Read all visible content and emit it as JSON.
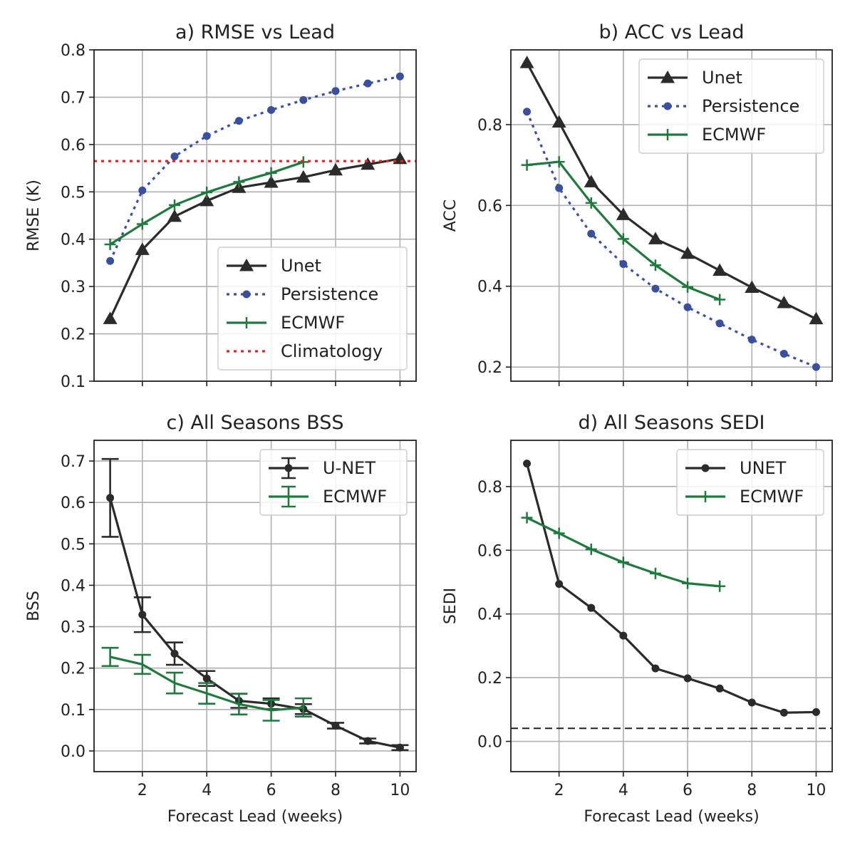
{
  "chart_data": [
    {
      "id": "a",
      "type": "line",
      "title": "a) RMSE vs Lead",
      "xlabel": "",
      "ylabel": "RMSE (K)",
      "xlim": [
        0.5,
        10.5
      ],
      "ylim": [
        0.1,
        0.8
      ],
      "xticks": [
        2,
        4,
        6,
        8,
        10
      ],
      "xtick_labels_visible": false,
      "yticks": [
        0.1,
        0.2,
        0.3,
        0.4,
        0.5,
        0.6,
        0.7,
        0.8
      ],
      "ytick_labels": [
        "0.1",
        "0.2",
        "0.3",
        "0.4",
        "0.5",
        "0.6",
        "0.7",
        "0.8"
      ],
      "grid": true,
      "legend_position": "lower right",
      "series": [
        {
          "name": "Unet",
          "color": "#2b2b2b",
          "style": "solid",
          "marker": "triangle",
          "x": [
            1,
            2,
            3,
            4,
            5,
            6,
            7,
            8,
            9,
            10
          ],
          "y": [
            0.232,
            0.378,
            0.448,
            0.481,
            0.509,
            0.52,
            0.531,
            0.546,
            0.558,
            0.57
          ]
        },
        {
          "name": "Persistence",
          "color": "#3b4fa0",
          "style": "dotted",
          "marker": "dot",
          "x": [
            1,
            2,
            3,
            4,
            5,
            6,
            7,
            8,
            9,
            10
          ],
          "y": [
            0.354,
            0.503,
            0.575,
            0.618,
            0.65,
            0.673,
            0.694,
            0.713,
            0.729,
            0.744
          ]
        },
        {
          "name": "ECMWF",
          "color": "#1f7a3d",
          "style": "solid",
          "marker": "plus",
          "x": [
            1,
            2,
            3,
            4,
            5,
            6,
            7
          ],
          "y": [
            0.389,
            0.432,
            0.472,
            0.499,
            0.521,
            0.54,
            0.563
          ]
        },
        {
          "name": "Climatology",
          "color": "#e8202a",
          "style": "dotted",
          "marker": "none",
          "x": [
            0.5,
            10.5
          ],
          "y": [
            0.565,
            0.565
          ]
        }
      ]
    },
    {
      "id": "b",
      "type": "line",
      "title": "b) ACC vs Lead",
      "xlabel": "",
      "ylabel": "ACC",
      "xlim": [
        0.5,
        10.5
      ],
      "ylim": [
        0.165,
        0.985
      ],
      "xticks": [
        2,
        4,
        6,
        8,
        10
      ],
      "xtick_labels_visible": false,
      "yticks": [
        0.2,
        0.4,
        0.6,
        0.8
      ],
      "ytick_labels": [
        "0.2",
        "0.4",
        "0.6",
        "0.8"
      ],
      "grid": true,
      "legend_position": "upper right",
      "series": [
        {
          "name": "Unet",
          "color": "#2b2b2b",
          "style": "solid",
          "marker": "triangle",
          "x": [
            1,
            2,
            3,
            4,
            5,
            6,
            7,
            8,
            9,
            10
          ],
          "y": [
            0.953,
            0.806,
            0.658,
            0.577,
            0.517,
            0.481,
            0.439,
            0.397,
            0.359,
            0.319
          ]
        },
        {
          "name": "Persistence",
          "color": "#3b4fa0",
          "style": "dotted",
          "marker": "dot",
          "x": [
            1,
            2,
            3,
            4,
            5,
            6,
            7,
            8,
            9,
            10
          ],
          "y": [
            0.832,
            0.643,
            0.53,
            0.455,
            0.394,
            0.348,
            0.308,
            0.268,
            0.233,
            0.2
          ]
        },
        {
          "name": "ECMWF",
          "color": "#1f7a3d",
          "style": "solid",
          "marker": "plus",
          "x": [
            1,
            2,
            3,
            4,
            5,
            6,
            7
          ],
          "y": [
            0.7,
            0.708,
            0.606,
            0.517,
            0.452,
            0.398,
            0.367
          ]
        }
      ]
    },
    {
      "id": "c",
      "type": "line",
      "title": "c) All Seasons BSS",
      "xlabel": "Forecast Lead (weeks)",
      "ylabel": "BSS",
      "xlim": [
        0.5,
        10.5
      ],
      "ylim": [
        -0.05,
        0.75
      ],
      "xticks": [
        2,
        4,
        6,
        8,
        10
      ],
      "xtick_labels": [
        "2",
        "4",
        "6",
        "8",
        "10"
      ],
      "xtick_labels_visible": true,
      "yticks": [
        0.0,
        0.1,
        0.2,
        0.3,
        0.4,
        0.5,
        0.6,
        0.7
      ],
      "ytick_labels": [
        "0.0",
        "0.1",
        "0.2",
        "0.3",
        "0.4",
        "0.5",
        "0.6",
        "0.7"
      ],
      "grid": true,
      "legend_position": "upper right",
      "series": [
        {
          "name": "U-NET",
          "color": "#2b2b2b",
          "style": "solid",
          "marker": "dot",
          "errorbars": true,
          "x": [
            1,
            2,
            3,
            4,
            5,
            6,
            7,
            8,
            9,
            10
          ],
          "y": [
            0.611,
            0.329,
            0.235,
            0.175,
            0.121,
            0.114,
            0.101,
            0.061,
            0.024,
            0.008
          ],
          "err": [
            0.094,
            0.042,
            0.027,
            0.018,
            0.017,
            0.013,
            0.012,
            0.007,
            0.006,
            0.006
          ]
        },
        {
          "name": "ECMWF",
          "color": "#1f7a3d",
          "style": "solid",
          "marker": "none",
          "errorbars": true,
          "x": [
            1,
            2,
            3,
            4,
            5,
            6,
            7
          ],
          "y": [
            0.227,
            0.209,
            0.164,
            0.139,
            0.113,
            0.098,
            0.105
          ],
          "err": [
            0.022,
            0.023,
            0.025,
            0.025,
            0.025,
            0.025,
            0.022
          ]
        }
      ]
    },
    {
      "id": "d",
      "type": "line",
      "title": "d) All Seasons SEDI",
      "xlabel": "Forecast Lead (weeks)",
      "ylabel": "SEDI",
      "xlim": [
        0.5,
        10.5
      ],
      "ylim": [
        -0.095,
        0.945
      ],
      "xticks": [
        2,
        4,
        6,
        8,
        10
      ],
      "xtick_labels": [
        "2",
        "4",
        "6",
        "8",
        "10"
      ],
      "xtick_labels_visible": true,
      "yticks": [
        0.0,
        0.2,
        0.4,
        0.6,
        0.8
      ],
      "ytick_labels": [
        "0.0",
        "0.2",
        "0.4",
        "0.6",
        "0.8"
      ],
      "grid": true,
      "legend_position": "upper right",
      "hline": {
        "y": 0.041,
        "color": "#222222",
        "style": "dashed"
      },
      "series": [
        {
          "name": "UNET",
          "color": "#2b2b2b",
          "style": "solid",
          "marker": "dot",
          "x": [
            1,
            2,
            3,
            4,
            5,
            6,
            7,
            8,
            9,
            10
          ],
          "y": [
            0.872,
            0.494,
            0.419,
            0.332,
            0.229,
            0.198,
            0.166,
            0.122,
            0.09,
            0.092
          ]
        },
        {
          "name": "ECMWF",
          "color": "#1f7a3d",
          "style": "solid",
          "marker": "plus",
          "x": [
            1,
            2,
            3,
            4,
            5,
            6,
            7
          ],
          "y": [
            0.702,
            0.653,
            0.603,
            0.562,
            0.527,
            0.496,
            0.487
          ]
        }
      ]
    }
  ]
}
